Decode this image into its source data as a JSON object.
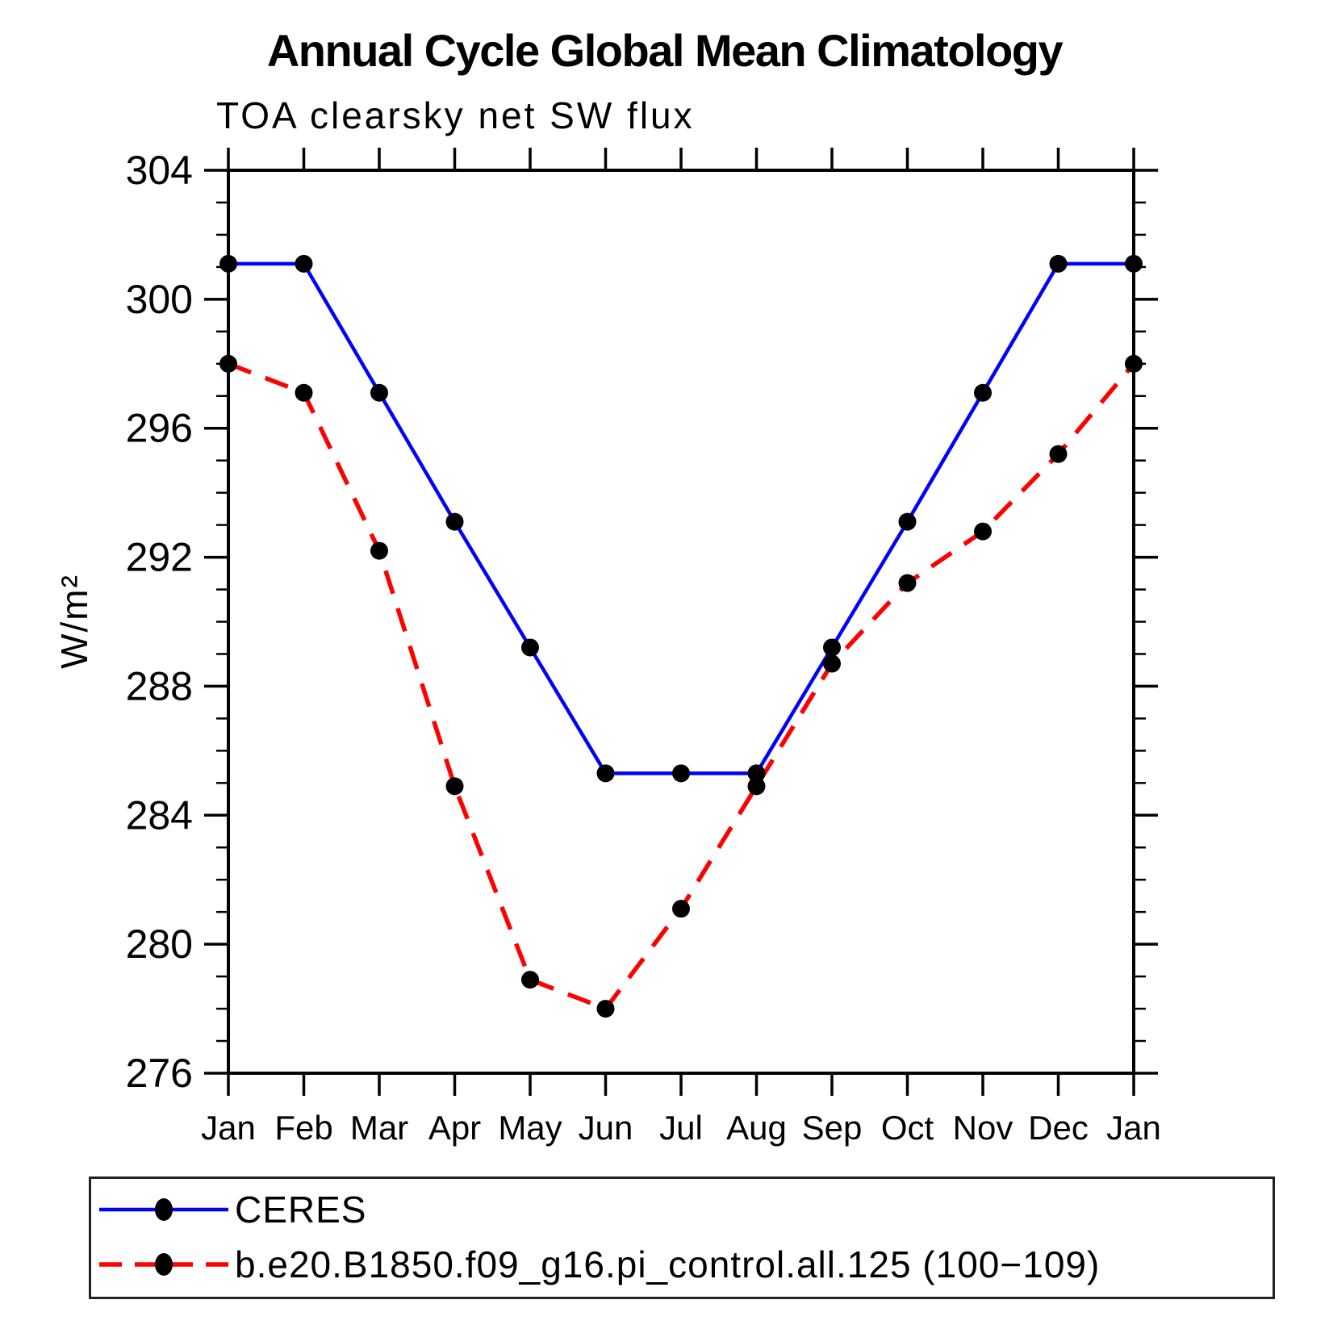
{
  "title": "Annual Cycle Global Mean Climatology",
  "subtitle": "TOA clearsky net SW flux",
  "chart_data": {
    "type": "line",
    "x_categories": [
      "Jan",
      "Feb",
      "Mar",
      "Apr",
      "May",
      "Jun",
      "Jul",
      "Aug",
      "Sep",
      "Oct",
      "Nov",
      "Dec",
      "Jan"
    ],
    "ylabel": "W/m²",
    "ylim": [
      276,
      304
    ],
    "ytick_major_step": 4,
    "ytick_minor_step": 1,
    "grid": false,
    "legend_position": "bottom-left-box",
    "series": [
      {
        "name": "CERES",
        "color": "#0000FF",
        "line_style": "solid",
        "marker": "filled-circle",
        "marker_color": "#000000",
        "values": [
          301.1,
          301.1,
          297.1,
          293.1,
          289.2,
          285.3,
          285.3,
          285.3,
          289.2,
          293.1,
          297.1,
          301.1,
          301.1
        ]
      },
      {
        "name": "b.e20.B1850.f09_g16.pi_control.all.125 (100−109)",
        "color": "#FF0000",
        "line_style": "dashed",
        "marker": "filled-circle",
        "marker_color": "#000000",
        "values": [
          298.0,
          297.1,
          292.2,
          284.9,
          278.9,
          278.0,
          281.1,
          284.9,
          288.7,
          291.2,
          292.8,
          295.2,
          298.0
        ]
      }
    ]
  }
}
